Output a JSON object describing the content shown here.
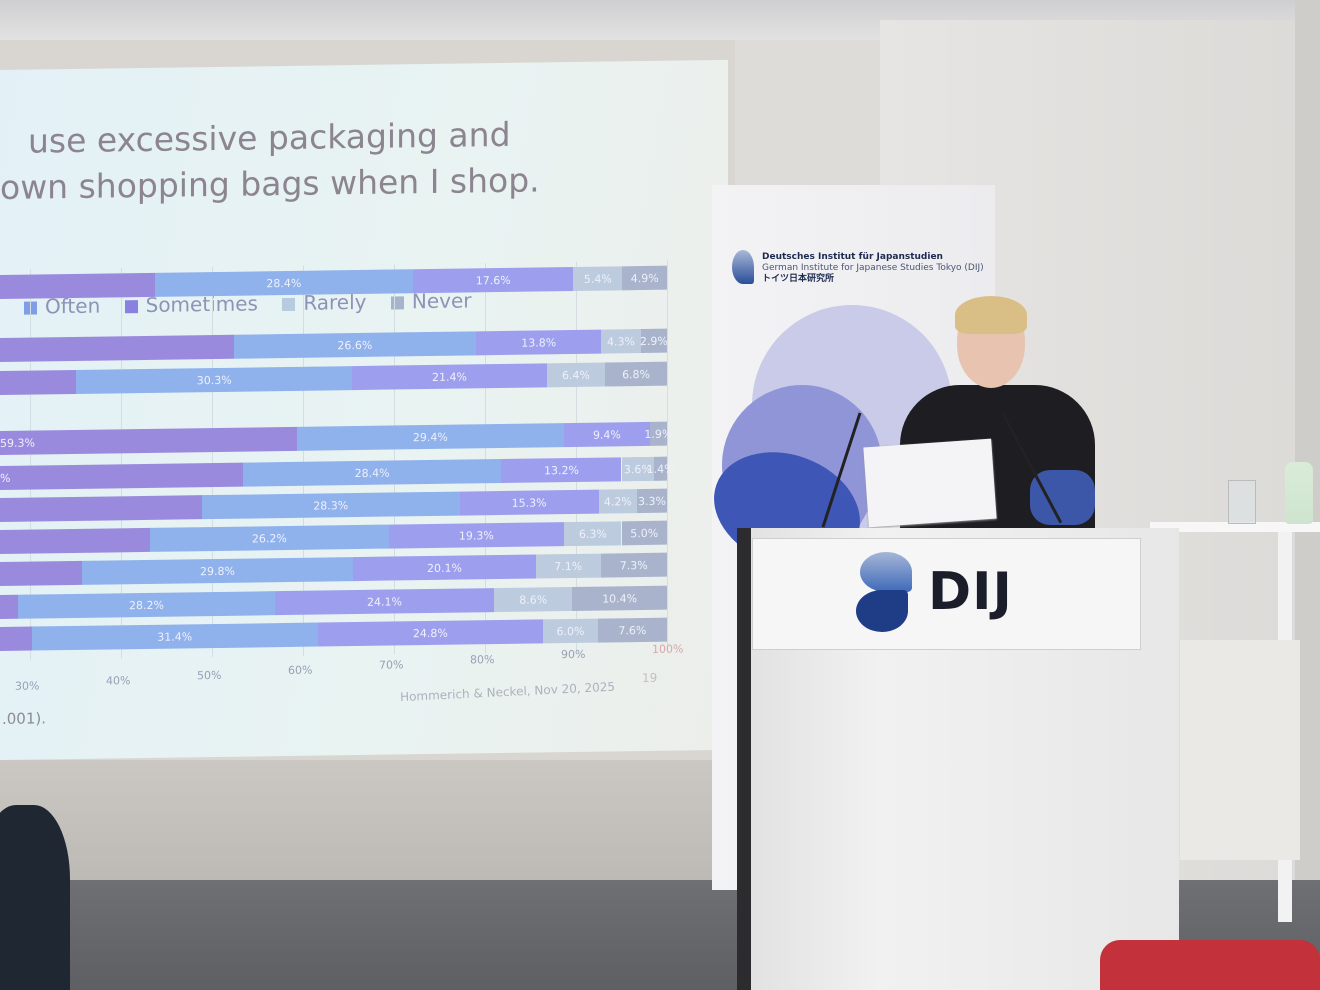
{
  "slide": {
    "title_lines": [
      "use excessive packaging and",
      "own shopping bags when I shop."
    ],
    "legend": [
      {
        "label": "Often",
        "color": "#7f9ee6"
      },
      {
        "label": "Sometimes",
        "color": "#8a80e0"
      },
      {
        "label": "Rarely",
        "color": "#b6cbe0"
      },
      {
        "label": "Never",
        "color": "#a6b3cd"
      }
    ],
    "source": "Hommerich & Neckel, Nov 20, 2025",
    "slide_number": "19",
    "footnote": ".001)."
  },
  "chart_data": {
    "type": "bar",
    "orientation": "horizontal-stacked",
    "x_tick_labels": [
      "30%",
      "40%",
      "50%",
      "60%",
      "70%",
      "80%",
      "90%",
      "100%"
    ],
    "xlim": [
      0,
      100
    ],
    "segment_colors": [
      "#9a8ade",
      "#8fb1ec",
      "#9d9fee",
      "#bccbdd",
      "#a9b4cc"
    ],
    "rows": [
      {
        "values": [
          null,
          28.4,
          17.6,
          5.4,
          4.9
        ],
        "labels": [
          "",
          "28.4%",
          "17.6%",
          "5.4%",
          "4.9%"
        ]
      },
      {
        "values": [
          null,
          26.6,
          13.8,
          4.3,
          2.9
        ],
        "labels": [
          "",
          "26.6%",
          "13.8%",
          "4.3%",
          "2.9%"
        ]
      },
      {
        "values": [
          null,
          30.3,
          21.4,
          6.4,
          6.8
        ],
        "labels": [
          "",
          "30.3%",
          "21.4%",
          "6.4%",
          "6.8%"
        ]
      },
      {
        "values": [
          59.3,
          29.4,
          9.4,
          1.9
        ],
        "labels": [
          "59.3%",
          "29.4%",
          "9.4%",
          "1.9%"
        ]
      },
      {
        "values": [
          null,
          28.4,
          13.2,
          3.6,
          1.4
        ],
        "labels": [
          "%",
          "28.4%",
          "13.2%",
          "3.6%",
          "1.4%"
        ]
      },
      {
        "values": [
          null,
          28.3,
          15.3,
          4.2,
          3.3
        ],
        "labels": [
          "",
          "28.3%",
          "15.3%",
          "4.2%",
          "3.3%"
        ]
      },
      {
        "values": [
          null,
          26.2,
          19.3,
          6.3,
          5.0
        ],
        "labels": [
          "",
          "26.2%",
          "19.3%",
          "6.3%",
          "5.0%"
        ]
      },
      {
        "values": [
          null,
          29.8,
          20.1,
          7.1,
          7.3
        ],
        "labels": [
          "",
          "29.8%",
          "20.1%",
          "7.1%",
          "7.3%"
        ]
      },
      {
        "values": [
          null,
          28.2,
          24.1,
          8.6,
          10.4
        ],
        "labels": [
          "",
          "28.2%",
          "24.1%",
          "8.6%",
          "10.4%"
        ]
      },
      {
        "values": [
          null,
          31.4,
          24.8,
          6.0,
          7.6
        ],
        "labels": [
          "",
          "31.4%",
          "24.8%",
          "6.0%",
          "7.6%"
        ]
      }
    ]
  },
  "banner": {
    "name_de": "Deutsches Institut für Japanstudien",
    "name_en": "German Institute for Japanese Studies Tokyo (DIJ)",
    "name_ja": "トイツ日本研究所"
  },
  "podium": {
    "logo_text": "DIJ"
  }
}
